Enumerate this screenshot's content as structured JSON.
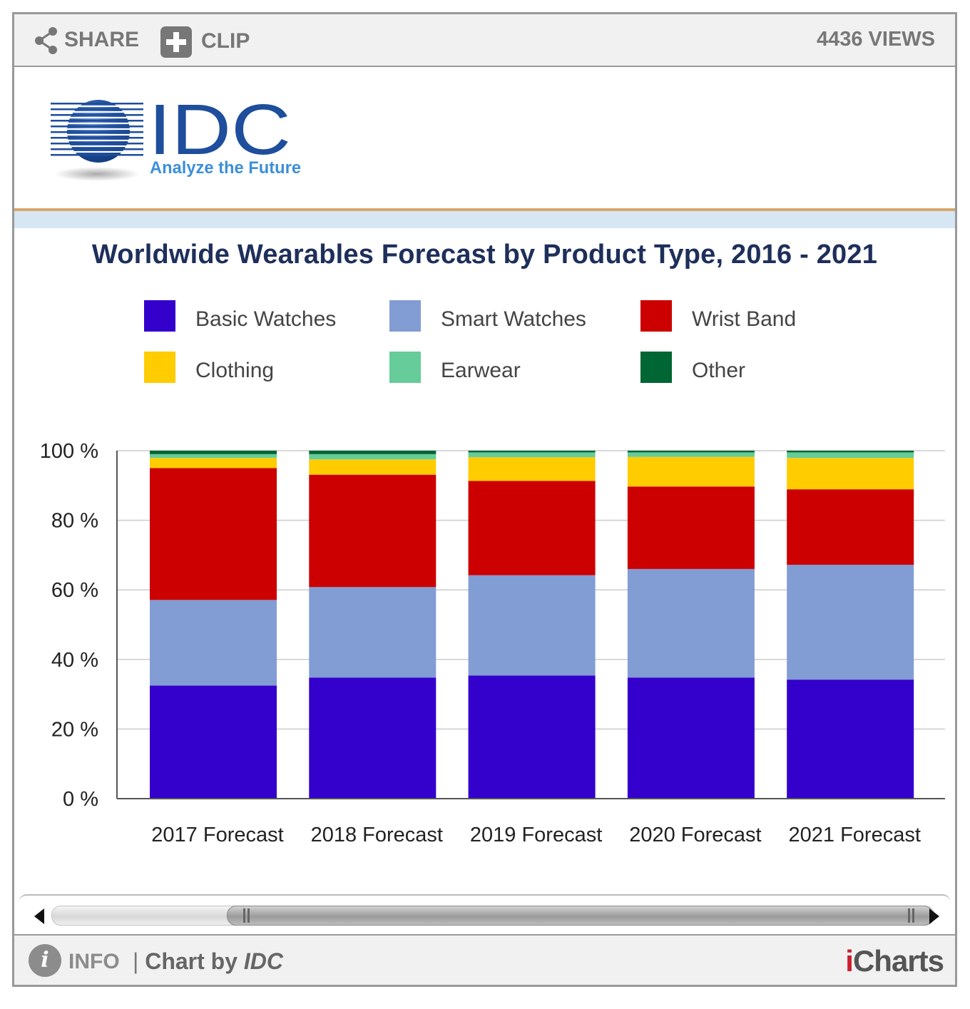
{
  "toolbar": {
    "share_label": "SHARE",
    "clip_label": "CLIP",
    "views_label": "4436 VIEWS"
  },
  "logo": {
    "brand": "IDC",
    "tagline": "Analyze the Future"
  },
  "footer": {
    "info_label": "INFO",
    "chart_by_prefix": "Chart by",
    "chart_by_source": "IDC",
    "provider_i": "i",
    "provider_rest": "Charts"
  },
  "colors": {
    "basic_watches": "#3300cc",
    "smart_watches": "#829cd4",
    "wrist_band": "#cc0000",
    "clothing": "#ffcc00",
    "earwear": "#66cc99",
    "other": "#006633"
  },
  "chart_data": {
    "type": "bar",
    "stacked": true,
    "title": "Worldwide Wearables Forecast by Product Type, 2016 - 2021",
    "xlabel": "",
    "ylabel": "",
    "ylim": [
      0,
      100
    ],
    "yticks": [
      "0 %",
      "20 %",
      "40 %",
      "60 %",
      "80 %",
      "100 %"
    ],
    "grid": true,
    "legend_position": "top",
    "categories": [
      "2017 Forecast",
      "2018 Forecast",
      "2019 Forecast",
      "2020 Forecast",
      "2021 Forecast"
    ],
    "series": [
      {
        "name": "Basic Watches",
        "color": "#3300cc",
        "values": [
          32.5,
          34.8,
          35.4,
          34.8,
          34.2
        ]
      },
      {
        "name": "Smart Watches",
        "color": "#829cd4",
        "values": [
          24.6,
          26.0,
          28.8,
          31.2,
          33.0
        ]
      },
      {
        "name": "Wrist Band",
        "color": "#cc0000",
        "values": [
          37.9,
          32.3,
          27.1,
          23.7,
          21.7
        ]
      },
      {
        "name": "Clothing",
        "color": "#ffcc00",
        "values": [
          2.9,
          4.4,
          6.8,
          8.5,
          9.0
        ]
      },
      {
        "name": "Earwear",
        "color": "#66cc99",
        "values": [
          1.1,
          1.5,
          1.4,
          1.3,
          1.6
        ]
      },
      {
        "name": "Other",
        "color": "#006633",
        "values": [
          1.0,
          1.0,
          0.5,
          0.5,
          0.5
        ]
      }
    ]
  }
}
